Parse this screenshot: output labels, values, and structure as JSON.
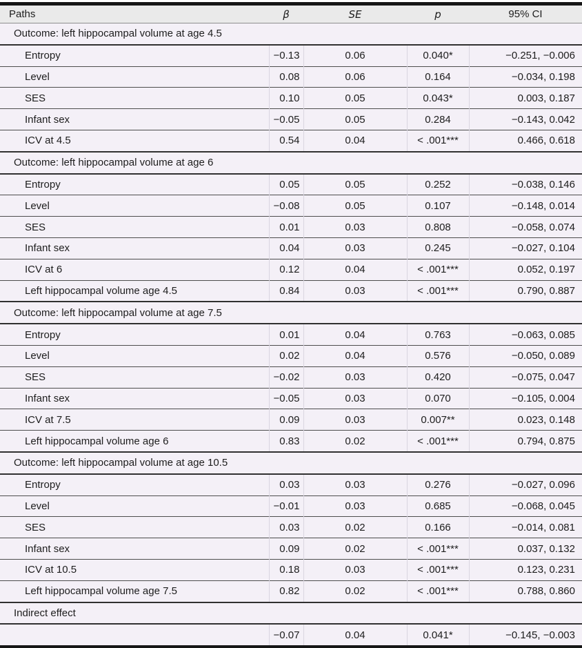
{
  "colors": {
    "row_background": "#f4f0f7",
    "header_background": "#eaeaea",
    "rule_dark": "#161616",
    "rule_row": "#4c4c4c",
    "rule_column": "#d9d5e0"
  },
  "table": {
    "columns": [
      {
        "key": "path",
        "label": "Paths"
      },
      {
        "key": "beta",
        "label": "β"
      },
      {
        "key": "se",
        "label": "SE"
      },
      {
        "key": "p",
        "label": "p"
      },
      {
        "key": "ci",
        "label": "95% CI"
      }
    ],
    "sections": [
      {
        "header": "Outcome: left hippocampal volume at age 4.5",
        "rows": [
          {
            "path": "Entropy",
            "beta": "−0.13",
            "se": "0.06",
            "p": "0.040*",
            "ci": "−0.251, −0.006"
          },
          {
            "path": "Level",
            "beta": "0.08",
            "se": "0.06",
            "p": "0.164",
            "ci": "−0.034, 0.198"
          },
          {
            "path": "SES",
            "beta": "0.10",
            "se": "0.05",
            "p": "0.043*",
            "ci": "0.003, 0.187"
          },
          {
            "path": "Infant sex",
            "beta": "−0.05",
            "se": "0.05",
            "p": "0.284",
            "ci": "−0.143, 0.042"
          },
          {
            "path": "ICV at 4.5",
            "beta": "0.54",
            "se": "0.04",
            "p": "< .001***",
            "ci": "0.466, 0.618"
          }
        ]
      },
      {
        "header": "Outcome: left hippocampal volume at age 6",
        "rows": [
          {
            "path": "Entropy",
            "beta": "0.05",
            "se": "0.05",
            "p": "0.252",
            "ci": "−0.038, 0.146"
          },
          {
            "path": "Level",
            "beta": "−0.08",
            "se": "0.05",
            "p": "0.107",
            "ci": "−0.148, 0.014"
          },
          {
            "path": "SES",
            "beta": "0.01",
            "se": "0.03",
            "p": "0.808",
            "ci": "−0.058, 0.074"
          },
          {
            "path": "Infant sex",
            "beta": "0.04",
            "se": "0.03",
            "p": "0.245",
            "ci": "−0.027, 0.104"
          },
          {
            "path": "ICV at 6",
            "beta": "0.12",
            "se": "0.04",
            "p": "< .001***",
            "ci": "0.052, 0.197"
          },
          {
            "path": "Left hippocampal volume age 4.5",
            "beta": "0.84",
            "se": "0.03",
            "p": "< .001***",
            "ci": "0.790, 0.887"
          }
        ]
      },
      {
        "header": "Outcome: left hippocampal volume at age 7.5",
        "rows": [
          {
            "path": "Entropy",
            "beta": "0.01",
            "se": "0.04",
            "p": "0.763",
            "ci": "−0.063, 0.085"
          },
          {
            "path": "Level",
            "beta": "0.02",
            "se": "0.04",
            "p": "0.576",
            "ci": "−0.050, 0.089"
          },
          {
            "path": "SES",
            "beta": "−0.02",
            "se": "0.03",
            "p": "0.420",
            "ci": "−0.075, 0.047"
          },
          {
            "path": "Infant sex",
            "beta": "−0.05",
            "se": "0.03",
            "p": "0.070",
            "ci": "−0.105, 0.004"
          },
          {
            "path": "ICV at 7.5",
            "beta": "0.09",
            "se": "0.03",
            "p": "0.007**",
            "ci": "0.023, 0.148"
          },
          {
            "path": "Left hippocampal volume age 6",
            "beta": "0.83",
            "se": "0.02",
            "p": "< .001***",
            "ci": "0.794, 0.875"
          }
        ]
      },
      {
        "header": "Outcome: left hippocampal volume at age 10.5",
        "rows": [
          {
            "path": "Entropy",
            "beta": "0.03",
            "se": "0.03",
            "p": "0.276",
            "ci": "−0.027, 0.096"
          },
          {
            "path": "Level",
            "beta": "−0.01",
            "se": "0.03",
            "p": "0.685",
            "ci": "−0.068, 0.045"
          },
          {
            "path": "SES",
            "beta": "0.03",
            "se": "0.02",
            "p": "0.166",
            "ci": "−0.014, 0.081"
          },
          {
            "path": "Infant sex",
            "beta": "0.09",
            "se": "0.02",
            "p": "< .001***",
            "ci": "0.037, 0.132"
          },
          {
            "path": "ICV at 10.5",
            "beta": "0.18",
            "se": "0.03",
            "p": "< .001***",
            "ci": "0.123, 0.231"
          },
          {
            "path": "Left hippocampal volume age 7.5",
            "beta": "0.82",
            "se": "0.02",
            "p": "< .001***",
            "ci": "0.788, 0.860"
          }
        ]
      },
      {
        "header": "Indirect effect",
        "rows": [
          {
            "path": "",
            "beta": "−0.07",
            "se": "0.04",
            "p": "0.041*",
            "ci": "−0.145, −0.003"
          }
        ]
      }
    ]
  }
}
